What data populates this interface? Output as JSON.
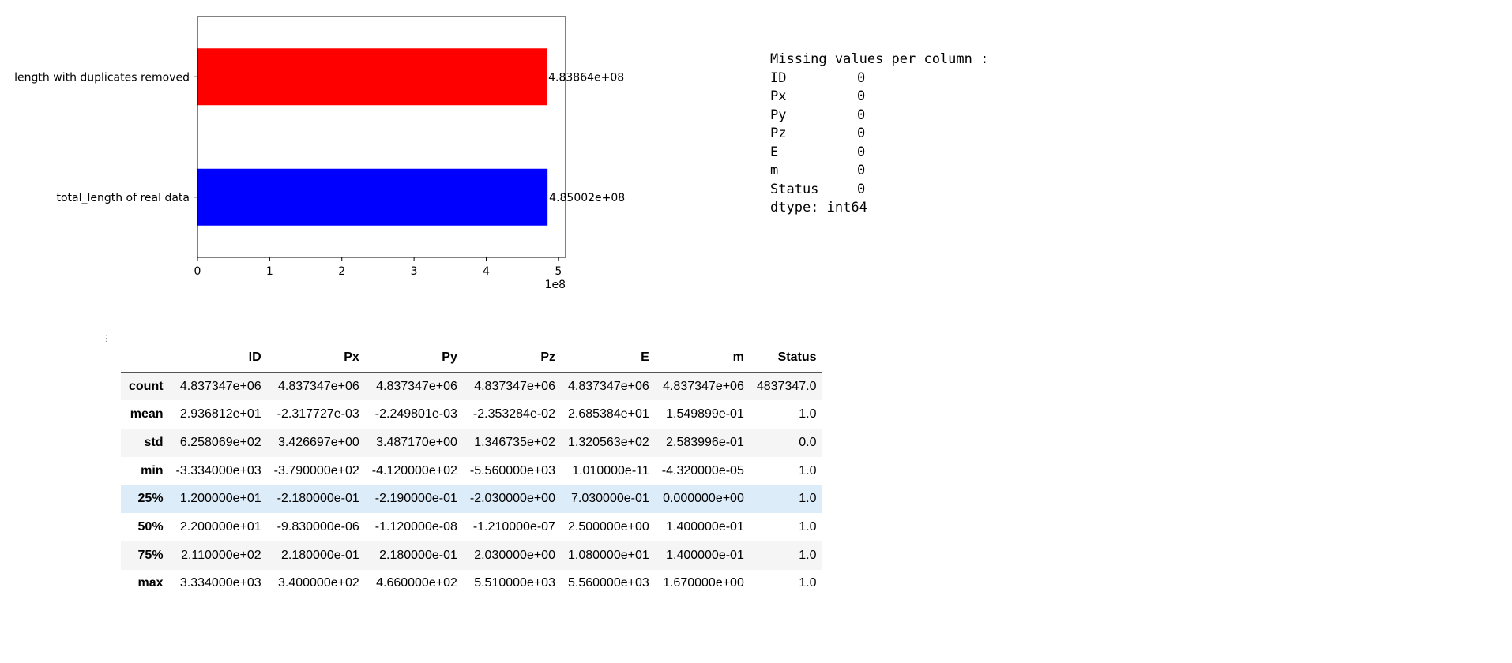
{
  "chart_data": {
    "type": "bar",
    "orientation": "horizontal",
    "categories": [
      "length with duplicates removed",
      "total_length of real data"
    ],
    "values": [
      483864000,
      485002000
    ],
    "value_labels": [
      "4.83864e+08",
      "4.85002e+08"
    ],
    "colors": [
      "#ff0000",
      "#0000ff"
    ],
    "xlim": [
      0,
      510000000
    ],
    "xticks": [
      0,
      1,
      2,
      3,
      4,
      5
    ],
    "xtick_scale": 100000000,
    "offset_label": "1e8",
    "title": "",
    "xlabel": "",
    "ylabel": "",
    "grid": false
  },
  "missing": {
    "header": "Missing values per column :",
    "rows": [
      {
        "name": "ID",
        "value": "0"
      },
      {
        "name": "Px",
        "value": "0"
      },
      {
        "name": "Py",
        "value": "0"
      },
      {
        "name": "Pz",
        "value": "0"
      },
      {
        "name": "E",
        "value": "0"
      },
      {
        "name": "m",
        "value": "0"
      },
      {
        "name": "Status",
        "value": "0"
      }
    ],
    "dtype": "dtype: int64"
  },
  "cell_ellipsis": "⋮",
  "stats": {
    "columns": [
      "",
      "ID",
      "Px",
      "Py",
      "Pz",
      "E",
      "m",
      "Status"
    ],
    "rows": [
      {
        "label": "count",
        "cells": [
          "4.837347e+06",
          "4.837347e+06",
          "4.837347e+06",
          "4.837347e+06",
          "4.837347e+06",
          "4.837347e+06",
          "4837347.0"
        ]
      },
      {
        "label": "mean",
        "cells": [
          "2.936812e+01",
          "-2.317727e-03",
          "-2.249801e-03",
          "-2.353284e-02",
          "2.685384e+01",
          "1.549899e-01",
          "1.0"
        ]
      },
      {
        "label": "std",
        "cells": [
          "6.258069e+02",
          "3.426697e+00",
          "3.487170e+00",
          "1.346735e+02",
          "1.320563e+02",
          "2.583996e-01",
          "0.0"
        ]
      },
      {
        "label": "min",
        "cells": [
          "-3.334000e+03",
          "-3.790000e+02",
          "-4.120000e+02",
          "-5.560000e+03",
          "1.010000e-11",
          "-4.320000e-05",
          "1.0"
        ]
      },
      {
        "label": "25%",
        "cells": [
          "1.200000e+01",
          "-2.180000e-01",
          "-2.190000e-01",
          "-2.030000e+00",
          "7.030000e-01",
          "0.000000e+00",
          "1.0"
        ]
      },
      {
        "label": "50%",
        "cells": [
          "2.200000e+01",
          "-9.830000e-06",
          "-1.120000e-08",
          "-1.210000e-07",
          "2.500000e+00",
          "1.400000e-01",
          "1.0"
        ]
      },
      {
        "label": "75%",
        "cells": [
          "2.110000e+02",
          "2.180000e-01",
          "2.180000e-01",
          "2.030000e+00",
          "1.080000e+01",
          "1.400000e-01",
          "1.0"
        ]
      },
      {
        "label": "max",
        "cells": [
          "3.334000e+03",
          "3.400000e+02",
          "4.660000e+02",
          "5.510000e+03",
          "5.560000e+03",
          "1.670000e+00",
          "1.0"
        ]
      }
    ],
    "highlight_colors": {
      "hover_row": "#dcecf9",
      "stripe": "#f5f5f5"
    }
  }
}
